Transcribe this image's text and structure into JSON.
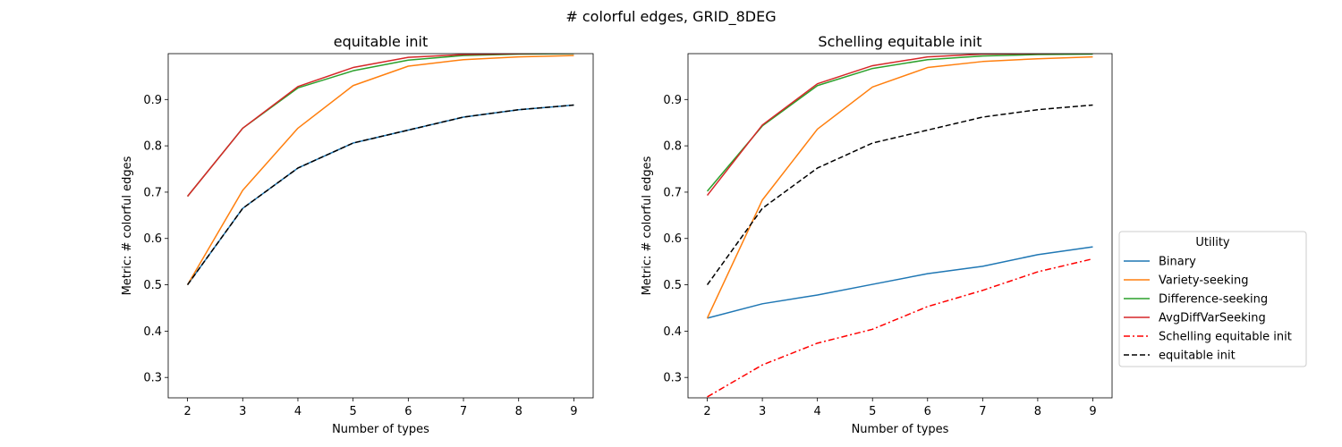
{
  "figure_title": "# colorful edges, GRID_8DEG",
  "legend": {
    "title": "Utility",
    "placement": "right, outside"
  },
  "chart_data": [
    {
      "type": "line",
      "title": "equitable init",
      "xlabel": "Number of types",
      "ylabel": "Metric: # colorful edges",
      "xlim": [
        1.65,
        9.35
      ],
      "ylim": [
        0.256,
        0.999
      ],
      "xticks": [
        "2",
        "3",
        "4",
        "5",
        "6",
        "7",
        "8",
        "9"
      ],
      "yticks": [
        "0.3",
        "0.4",
        "0.5",
        "0.6",
        "0.7",
        "0.8",
        "0.9"
      ],
      "x": [
        2,
        3,
        4,
        5,
        6,
        7,
        8,
        9
      ],
      "series": [
        {
          "name": "Binary",
          "color": "#1f77b4",
          "style": "solid",
          "values": [
            0.5,
            0.665,
            0.752,
            0.806,
            0.834,
            0.862,
            0.878,
            0.888
          ]
        },
        {
          "name": "Variety-seeking",
          "color": "#ff7f0e",
          "style": "solid",
          "values": [
            0.5,
            0.704,
            0.838,
            0.93,
            0.972,
            0.986,
            0.992,
            0.995
          ]
        },
        {
          "name": "Difference-seeking",
          "color": "#2ca02c",
          "style": "solid",
          "values": [
            0.691,
            0.838,
            0.925,
            0.962,
            0.985,
            0.995,
            0.998,
            0.999
          ]
        },
        {
          "name": "AvgDiffVarSeeking",
          "color": "#d62728",
          "style": "solid",
          "values": [
            0.691,
            0.838,
            0.928,
            0.969,
            0.991,
            0.997,
            0.999,
            1.0
          ]
        },
        {
          "name": "equitable init",
          "color": "#000000",
          "style": "dashed",
          "values": [
            0.5,
            0.665,
            0.752,
            0.806,
            0.834,
            0.862,
            0.878,
            0.888
          ]
        }
      ]
    },
    {
      "type": "line",
      "title": "Schelling equitable init",
      "xlabel": "Number of types",
      "ylabel": "Metric: # colorful edges",
      "xlim": [
        1.65,
        9.35
      ],
      "ylim": [
        0.256,
        0.999
      ],
      "xticks": [
        "2",
        "3",
        "4",
        "5",
        "6",
        "7",
        "8",
        "9"
      ],
      "yticks": [
        "0.3",
        "0.4",
        "0.5",
        "0.6",
        "0.7",
        "0.8",
        "0.9"
      ],
      "x": [
        2,
        3,
        4,
        5,
        6,
        7,
        8,
        9
      ],
      "series": [
        {
          "name": "Binary",
          "color": "#1f77b4",
          "style": "solid",
          "values": [
            0.428,
            0.459,
            0.478,
            0.501,
            0.524,
            0.54,
            0.565,
            0.582
          ]
        },
        {
          "name": "Variety-seeking",
          "color": "#ff7f0e",
          "style": "solid",
          "values": [
            0.428,
            0.683,
            0.836,
            0.927,
            0.969,
            0.982,
            0.988,
            0.992
          ]
        },
        {
          "name": "Difference-seeking",
          "color": "#2ca02c",
          "style": "solid",
          "values": [
            0.702,
            0.843,
            0.93,
            0.967,
            0.986,
            0.994,
            0.997,
            0.998
          ]
        },
        {
          "name": "AvgDiffVarSeeking",
          "color": "#d62728",
          "style": "solid",
          "values": [
            0.693,
            0.845,
            0.934,
            0.973,
            0.992,
            0.998,
            0.999,
            1.0
          ]
        },
        {
          "name": "Schelling equitable init",
          "color": "#ff0000",
          "style": "dashdot",
          "values": [
            0.258,
            0.327,
            0.374,
            0.404,
            0.453,
            0.488,
            0.528,
            0.556
          ]
        },
        {
          "name": "equitable init",
          "color": "#000000",
          "style": "dashed",
          "values": [
            0.5,
            0.665,
            0.752,
            0.806,
            0.834,
            0.862,
            0.878,
            0.888
          ]
        }
      ]
    }
  ]
}
